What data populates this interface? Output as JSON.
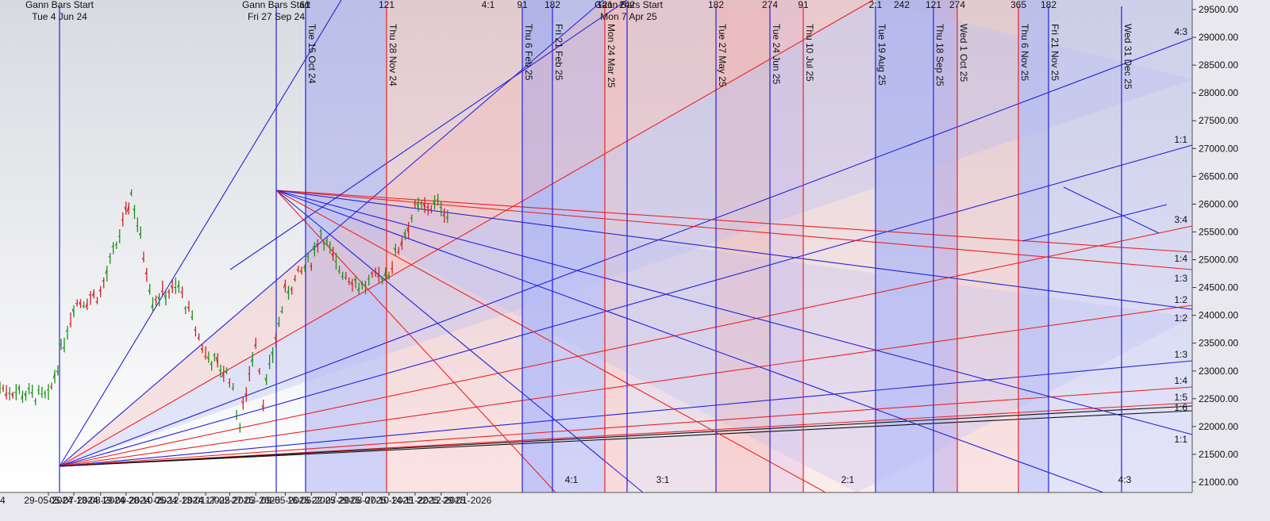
{
  "chart_data": {
    "type": "line",
    "subtype": "ohlc-bar-with-gann-fans",
    "colors": {
      "up": "#1a8f1a",
      "down": "#d02020",
      "blue": "#2222dd",
      "red": "#ee2222",
      "black": "#111111",
      "axis_bg": "#e8e8ee"
    },
    "y_axis": {
      "ylim": [
        21000,
        29500
      ],
      "ticks": [
        "29500.00",
        "29000.00",
        "28500.00",
        "28000.00",
        "27500.00",
        "27000.00",
        "26500.00",
        "26000.00",
        "25500.00",
        "25000.00",
        "24500.00",
        "24000.00",
        "23500.00",
        "23000.00",
        "22500.00",
        "22000.00",
        "21500.00",
        "21000.00"
      ]
    },
    "x_axis": {
      "left_edge_label": "4",
      "ticks": [
        "29-05-2024",
        "05-07-2024",
        "13-08-2024",
        "19-09-2024",
        "28-10-2024",
        "05-12-2024",
        "13-01-2025",
        "17-02-2025",
        "27-03-2025",
        "09-05-2025",
        "16-06-2025",
        "22-07-2025",
        "29-08-2025",
        "07-10-2025",
        "14-11-2025",
        "22-12-2025",
        "29-01-2026"
      ]
    },
    "starts": [
      {
        "title": "Gann Bars Start",
        "date": "Tue 4 Jun 24"
      },
      {
        "title": "Gann Bars Start",
        "date": "Fri 27 Sep 24"
      },
      {
        "title": "Gann Bars Start",
        "date": "Mon 7 Apr 25"
      }
    ],
    "vertical_dates": [
      "Tue 15 Oct 24",
      "Thu 28 Nov 24",
      "Thu 6 Feb 25",
      "Fri 21 Feb 25",
      "Mon 24 Mar 25",
      "Tue 27 May 25",
      "Tue 24 Jun 25",
      "Thu 10 Jul 25",
      "Tue 19 Aug 25",
      "Thu 18 Sep 25",
      "Wed 1 Oct 25",
      "Thu 6 Nov 25",
      "Fri 21 Nov 25",
      "Wed 31 Dec 25"
    ],
    "top_counts": [
      "61",
      "121",
      "4:1",
      "91",
      "182",
      "121",
      "242",
      "182",
      "274",
      "91",
      "2:1",
      "242",
      "121",
      "274",
      "365",
      "182"
    ],
    "right_ratio_labels": [
      "4:3",
      "1:1",
      "3:4",
      "1:4",
      "1:3",
      "1:2",
      "1:2",
      "1:3",
      "1:4",
      "1:5",
      "1:6",
      "1:1"
    ],
    "bottom_ratio_labels": [
      "4:1",
      "3:1",
      "2:1",
      "4:3"
    ],
    "price_series": {
      "dates": [
        "29-05-2024",
        "05-07-2024",
        "13-08-2024",
        "19-09-2024",
        "27-09-2024",
        "28-10-2024",
        "05-12-2024",
        "13-01-2025",
        "17-02-2025",
        "04-03-2025",
        "27-03-2025",
        "07-04-2025",
        "09-05-2025",
        "16-06-2025",
        "30-06-2025",
        "22-07-2025",
        "29-08-2025",
        "07-10-2025",
        "14-11-2025",
        "22-12-2025",
        "05-01-2026"
      ],
      "close": [
        22500,
        24200,
        24400,
        25800,
        26200,
        24300,
        24500,
        23300,
        22900,
        22000,
        23600,
        22500,
        24400,
        25000,
        25500,
        24900,
        24500,
        24800,
        25900,
        26000,
        25700
      ]
    }
  }
}
